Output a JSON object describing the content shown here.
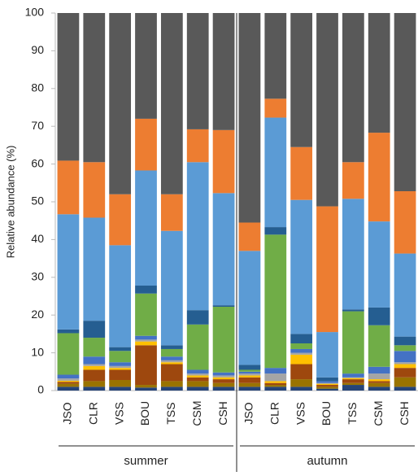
{
  "chart_data": {
    "type": "bar",
    "stacked": true,
    "y_label": "Relative abundance (%)",
    "categories": [
      "JSO",
      "CLR",
      "VSS",
      "BOU",
      "TSS",
      "CSM",
      "CSH",
      "JSO",
      "CLR",
      "VSS",
      "BOU",
      "TSS",
      "CSM",
      "CSH"
    ],
    "groups": [
      "summer",
      "autumn"
    ],
    "ylim": [
      0,
      100
    ],
    "yticks": [
      0,
      10,
      20,
      30,
      40,
      50,
      60,
      70,
      80,
      90,
      100
    ],
    "grid": false,
    "series": [
      {
        "color": "#264478",
        "values": [
          1,
          1,
          1,
          0.8,
          1,
          1,
          1,
          1,
          1,
          1,
          0.5,
          1.5,
          1,
          1
        ]
      },
      {
        "color": "#997300",
        "values": [
          0.8,
          1.5,
          1.8,
          0.7,
          1.5,
          1.5,
          1,
          1,
          0.5,
          2,
          0.5,
          0.5,
          1,
          2.5
        ]
      },
      {
        "color": "#9e480e",
        "values": [
          0.5,
          3,
          2.7,
          10.5,
          4.5,
          1,
          1,
          1.5,
          0.5,
          4,
          0.5,
          1,
          0.5,
          2.5
        ]
      },
      {
        "color": "#ffc000",
        "values": [
          0.3,
          1,
          0.5,
          1,
          0.5,
          0.5,
          0.5,
          0.5,
          0.5,
          2.5,
          0.3,
          0.3,
          0.5,
          1
        ]
      },
      {
        "color": "#a5a5a5",
        "values": [
          0.6,
          0.5,
          0.5,
          0.5,
          0.5,
          0.5,
          0.5,
          0.5,
          2,
          0.5,
          0.2,
          0.2,
          1.5,
          0.5
        ]
      },
      {
        "color": "#4472c4",
        "values": [
          1,
          2,
          1,
          1,
          1,
          1,
          0.8,
          0.5,
          1.5,
          1,
          0.5,
          1,
          1.8,
          3
        ]
      },
      {
        "color": "#70ad47",
        "values": [
          11,
          5,
          3,
          11.2,
          2,
          12,
          17.4,
          0.5,
          35.3,
          1.5,
          0,
          16.5,
          11,
          1.5
        ]
      },
      {
        "color": "#255e91",
        "values": [
          1,
          4.5,
          1,
          2.1,
          1,
          3.8,
          0.4,
          1.3,
          2,
          2.5,
          1,
          0.5,
          4.7,
          2.3
        ]
      },
      {
        "color": "#5b9bd5",
        "values": [
          30.5,
          27.3,
          27,
          30.5,
          30.3,
          39.2,
          29.7,
          30.2,
          29,
          35.5,
          12,
          29.3,
          22.8,
          22
        ]
      },
      {
        "color": "#ed7d31",
        "values": [
          14.2,
          14.7,
          13.5,
          13.7,
          9.7,
          8.7,
          16.7,
          7.5,
          5,
          14,
          33.3,
          9.7,
          23.5,
          16.5
        ]
      },
      {
        "color": "#595959",
        "values": [
          39.1,
          39.5,
          48,
          28,
          48,
          30.8,
          31,
          55.5,
          22.7,
          35.5,
          51.2,
          39.5,
          31.7,
          47.2
        ]
      }
    ]
  }
}
